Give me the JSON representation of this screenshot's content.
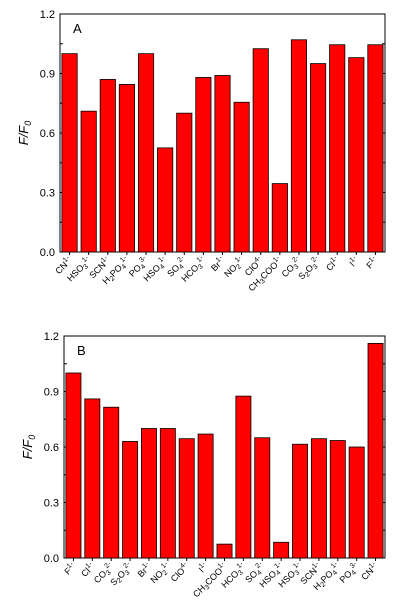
{
  "chart_data": [
    {
      "type": "bar",
      "panel_label": "A",
      "ylabel": {
        "main": "F/F",
        "sub": "0"
      },
      "ylim": [
        0.0,
        1.2
      ],
      "yticks": [
        "0.0",
        "0.3",
        "0.6",
        "0.9",
        "1.2"
      ],
      "categories": [
        {
          "text": "CN",
          "sup": "1-"
        },
        {
          "text": "HSO",
          "sub": "3",
          "sup": "1-"
        },
        {
          "text": "SCN",
          "sup": "1-"
        },
        {
          "text": "H",
          "sub": "2",
          "text2": "PO",
          "sub2": "4",
          "sup": "1-"
        },
        {
          "text": "PO",
          "sub": "4",
          "sup": "3-"
        },
        {
          "text": "HSO",
          "sub": "4",
          "sup": "1-"
        },
        {
          "text": "SO",
          "sub": "4",
          "sup": "2-"
        },
        {
          "text": "HCO",
          "sub": "3",
          "sup": "1-"
        },
        {
          "text": "Br",
          "sup": "1-"
        },
        {
          "text": "NO",
          "sub": "2",
          "sup": "1-"
        },
        {
          "text": "ClO",
          "sup": "4-"
        },
        {
          "text": "CH",
          "sub": "3",
          "text2": "COO",
          "sup": "1-"
        },
        {
          "text": "CO",
          "sub": "3",
          "sup": "2-"
        },
        {
          "text": "S",
          "sub": "2",
          "text2": "O",
          "sub2": "3",
          "sup": "2-"
        },
        {
          "text": "Cl",
          "sup": "1-"
        },
        {
          "text": "I",
          "sup": "1-"
        },
        {
          "text": "F",
          "sup": "1-"
        }
      ],
      "values": [
        1.0,
        0.71,
        0.87,
        0.845,
        1.0,
        0.525,
        0.7,
        0.88,
        0.89,
        0.755,
        1.025,
        0.345,
        1.07,
        0.95,
        1.045,
        0.98,
        1.045
      ]
    },
    {
      "type": "bar",
      "panel_label": "B",
      "ylabel": {
        "main": "F/F",
        "sub": "0"
      },
      "ylim": [
        0.0,
        1.2
      ],
      "yticks": [
        "0.0",
        "0.3",
        "0.6",
        "0.9",
        "1.2"
      ],
      "categories": [
        {
          "text": "F",
          "sup": "1-"
        },
        {
          "text": "Cl",
          "sup": "1-"
        },
        {
          "text": "CO",
          "sub": "3",
          "sup": "2-"
        },
        {
          "text": "S",
          "sub": "2",
          "text2": "O",
          "sub2": "3",
          "sup": "2-"
        },
        {
          "text": "Br",
          "sup": "1-"
        },
        {
          "text": "NO",
          "sub": "2",
          "sup": "1-"
        },
        {
          "text": "ClO",
          "sup": "4-"
        },
        {
          "text": "I",
          "sup": "1-"
        },
        {
          "text": "CH",
          "sub": "3",
          "text2": "COO",
          "sup": "1-"
        },
        {
          "text": "HCO",
          "sub": "3",
          "sup": "1-"
        },
        {
          "text": "SO",
          "sub": "4",
          "sup": "2-"
        },
        {
          "text": "HSO",
          "sub": "4",
          "sup": "1-"
        },
        {
          "text": "HSO",
          "sub": "3",
          "sup": "1-"
        },
        {
          "text": "SCN",
          "sup": "1-"
        },
        {
          "text": "H",
          "sub": "2",
          "text2": "PO",
          "sub2": "4",
          "sup": "1-"
        },
        {
          "text": "PO",
          "sub": "4",
          "sup": "3-"
        },
        {
          "text": "CN",
          "sup": "1-"
        }
      ],
      "values": [
        1.0,
        0.86,
        0.815,
        0.63,
        0.7,
        0.7,
        0.645,
        0.67,
        0.075,
        0.875,
        0.65,
        0.085,
        0.615,
        0.645,
        0.635,
        0.6,
        1.16
      ]
    }
  ]
}
